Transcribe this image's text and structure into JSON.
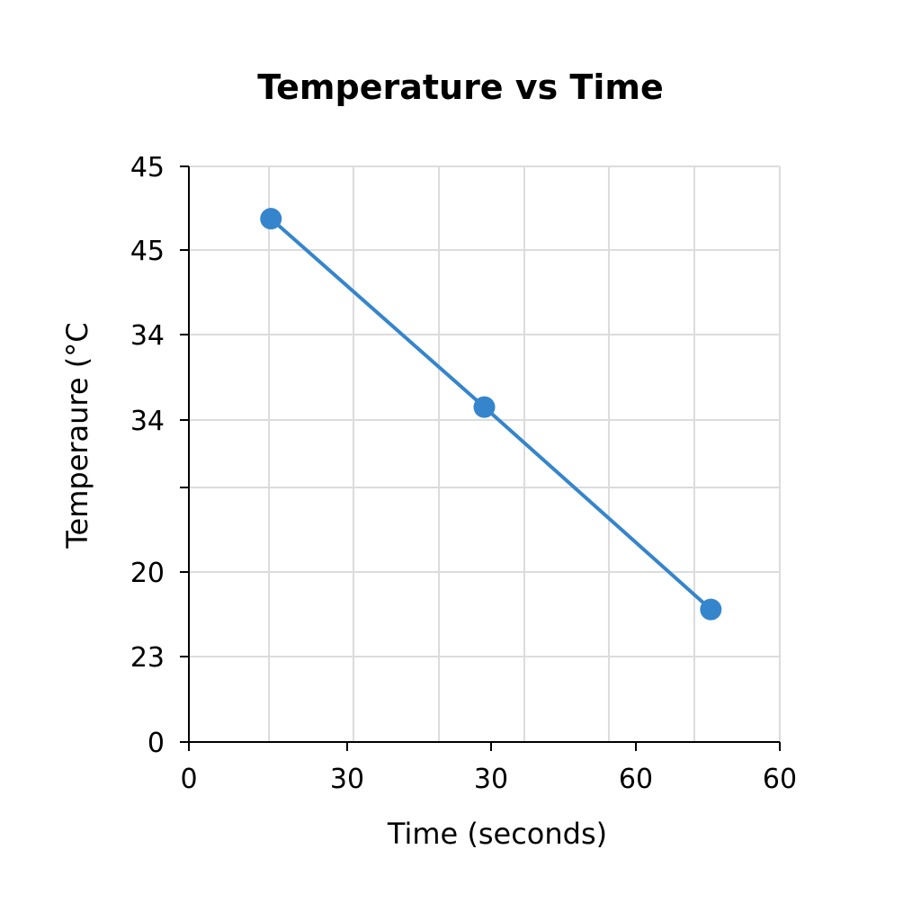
{
  "chart_data": {
    "type": "line",
    "title": "Temperature vs Time",
    "xlabel": "Time (seconds)",
    "ylabel": "Temperaure (°C",
    "x_tick_labels": [
      "0",
      "30",
      "30",
      "60",
      "60"
    ],
    "y_tick_labels": [
      "0",
      "23",
      "20",
      "",
      "34",
      "34",
      "45",
      "45"
    ],
    "x_positions_note_free": true,
    "series": [
      {
        "x": [
          5,
          18,
          31.8
        ],
        "y": [
          30,
          19.2,
          7.6
        ]
      }
    ],
    "xlim": [
      0,
      36
    ],
    "ylim": [
      0,
      33
    ],
    "grid": true,
    "legend": "none",
    "colors": {
      "line": "#3585cc",
      "marker": "#3585cc",
      "grid": "#dcdcdc",
      "axis": "#000000",
      "text": "#000000"
    }
  }
}
